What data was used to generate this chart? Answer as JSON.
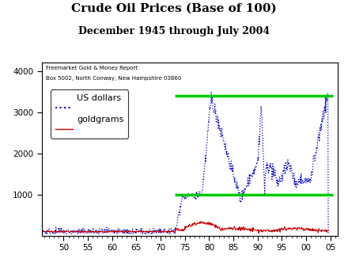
{
  "title": "Crude Oil Prices (Base of 100)",
  "subtitle": "December 1945 through July 2004",
  "annotation_line1": "Freemarket Gold & Money Report",
  "annotation_line2": "Box 5002, North Conway, New Hampshire 03860",
  "legend_label_blue": "US dollars",
  "legend_label_red": "goldgrams",
  "ylim": [
    0,
    4200
  ],
  "xticks": [
    50,
    55,
    60,
    65,
    70,
    75,
    80,
    85,
    90,
    95,
    100,
    105
  ],
  "xticklabels": [
    "50",
    "55",
    "60",
    "65",
    "70",
    "75",
    "80",
    "85",
    "90",
    "95",
    "00",
    "05"
  ],
  "yticks": [
    1000,
    2000,
    3000,
    4000
  ],
  "hline1_y": 1000,
  "hline2_y": 3400,
  "hline_xstart": 73.0,
  "hline_xend": 105.5,
  "background_color": "#ffffff",
  "blue_color": "#0000cc",
  "red_color": "#cc0000",
  "green_color": "#00cc00"
}
